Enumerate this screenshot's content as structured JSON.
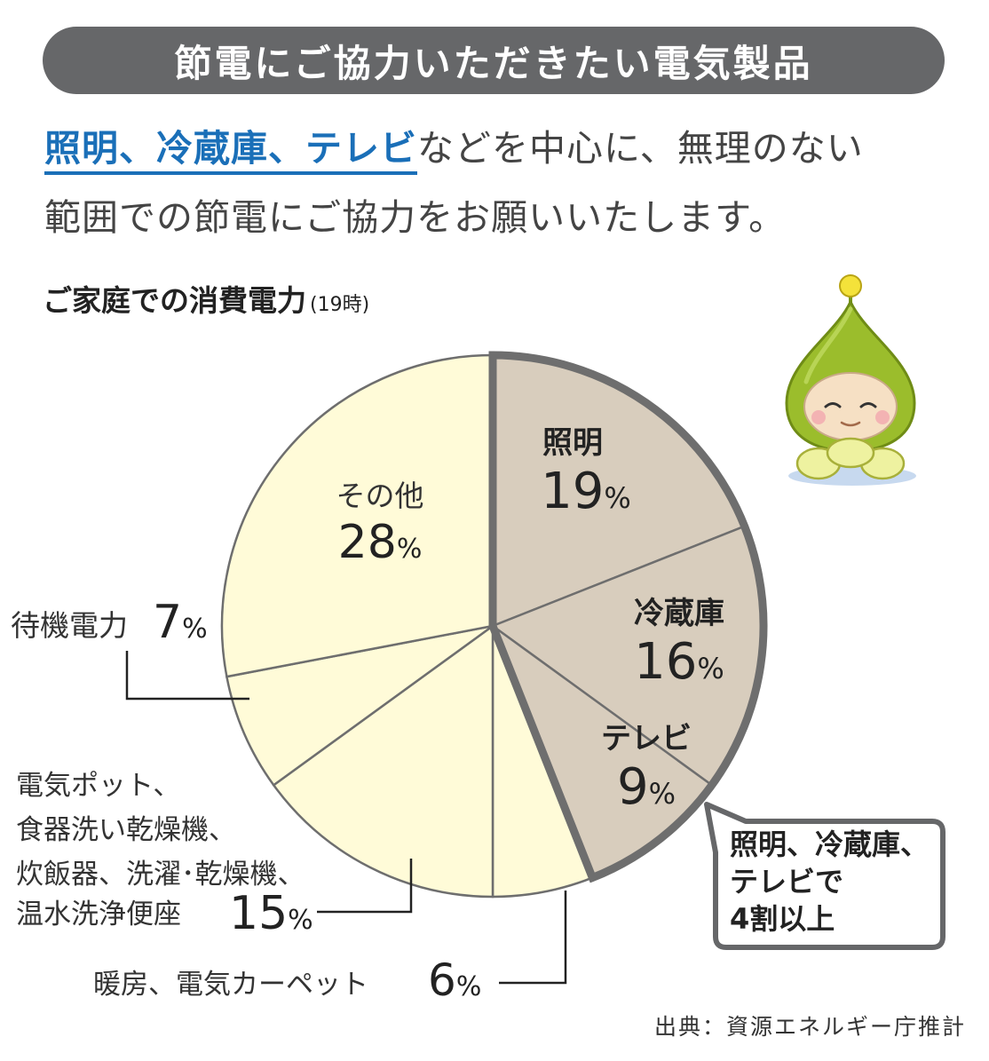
{
  "banner": {
    "title": "節電にご協力いただきたい電気製品"
  },
  "intro": {
    "highlight": "照明、冷蔵庫、テレビ",
    "line1_rest": "などを中心に、無理のない",
    "line2": "範囲での節電にご協力をお願いいたします。"
  },
  "chart_title": {
    "main": "ご家庭での消費電力",
    "sub": "(19時)"
  },
  "chart_data": {
    "type": "pie",
    "title": "ご家庭での消費電力(19時)",
    "unit": "%",
    "slices": [
      {
        "label": "照明",
        "value": 19,
        "highlighted": true,
        "lines": [
          "照明"
        ]
      },
      {
        "label": "冷蔵庫",
        "value": 16,
        "highlighted": true,
        "lines": [
          "冷蔵庫"
        ]
      },
      {
        "label": "テレビ",
        "value": 9,
        "highlighted": true,
        "lines": [
          "テレビ"
        ]
      },
      {
        "label": "暖房、電気カーペット",
        "value": 6,
        "highlighted": false,
        "lines": [
          "暖房、電気カーペット"
        ]
      },
      {
        "label": "電気ポット、食器洗い乾燥機、炊飯器、洗濯・乾燥機、温水洗浄便座",
        "value": 15,
        "highlighted": false,
        "lines": [
          "電気ポット、",
          "食器洗い乾燥機、",
          "炊飯器、洗濯･乾燥機、",
          "温水洗浄便座"
        ]
      },
      {
        "label": "待機電力",
        "value": 7,
        "highlighted": false,
        "lines": [
          "待機電力"
        ]
      },
      {
        "label": "その他",
        "value": 28,
        "highlighted": false,
        "lines": [
          "その他"
        ]
      }
    ],
    "colors": {
      "highlighted": "#d8cdbd",
      "other": "#fffbd8",
      "stroke": "#6e6e6e",
      "emphasis_border": "#6e6e6e"
    },
    "callout": {
      "lines": [
        "照明、冷蔵庫、",
        "テレビで",
        "4割以上"
      ]
    }
  },
  "source": "出典：資源エネルギー庁推計"
}
